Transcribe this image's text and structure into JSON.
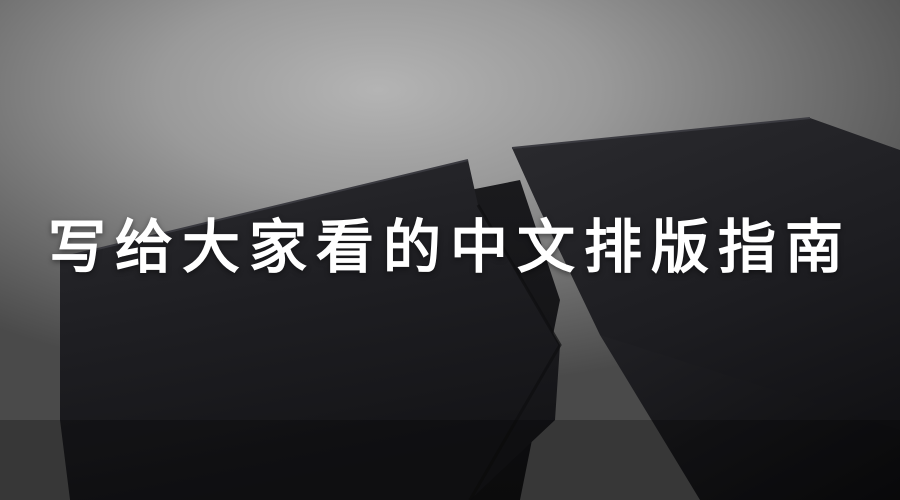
{
  "cover": {
    "title": "写给大家看的中文排版指南"
  }
}
